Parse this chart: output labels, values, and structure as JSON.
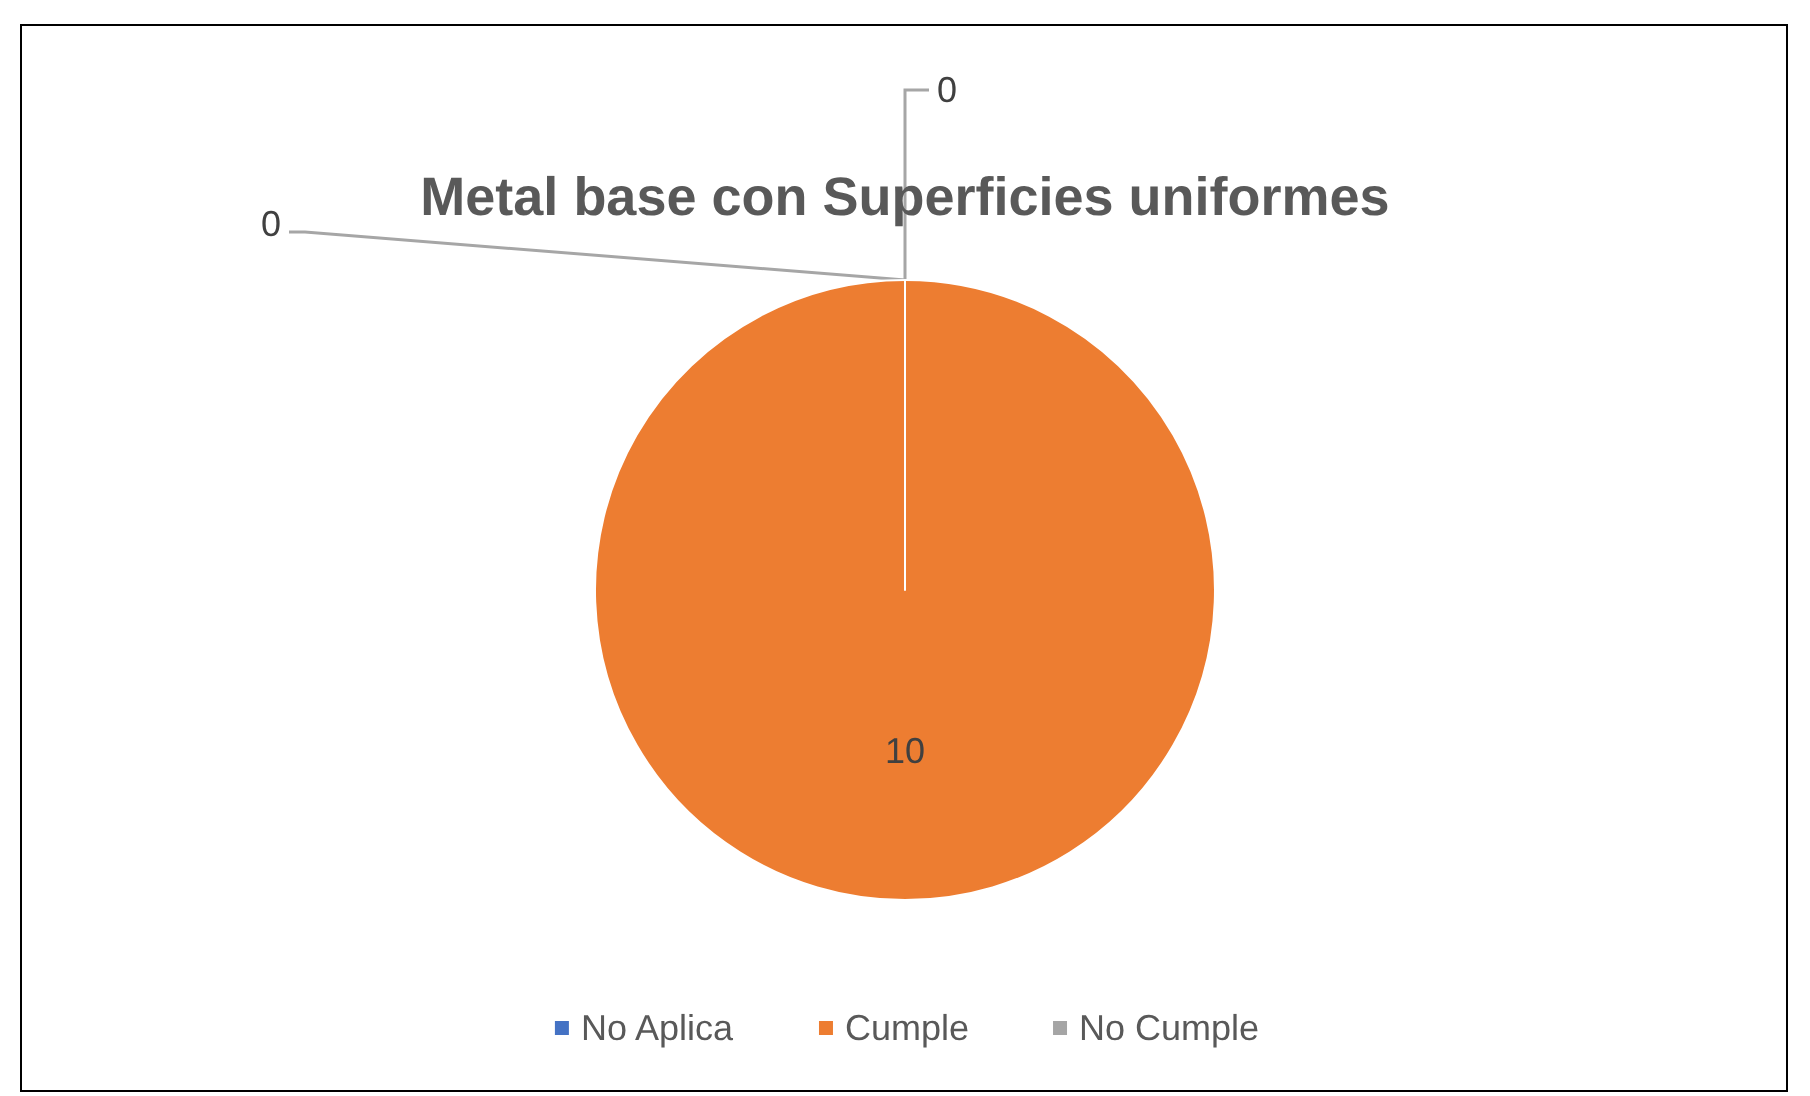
{
  "chart_data": {
    "type": "pie",
    "title": "Metal base con Superficies uniformes",
    "categories": [
      "No Aplica",
      "Cumple",
      "No Cumple"
    ],
    "values": [
      0,
      10,
      0
    ],
    "value_labels": [
      "0",
      "10",
      "0"
    ],
    "colors": [
      "#4472c4",
      "#ed7d31",
      "#a5a5a5"
    ],
    "legend": "bottom"
  }
}
